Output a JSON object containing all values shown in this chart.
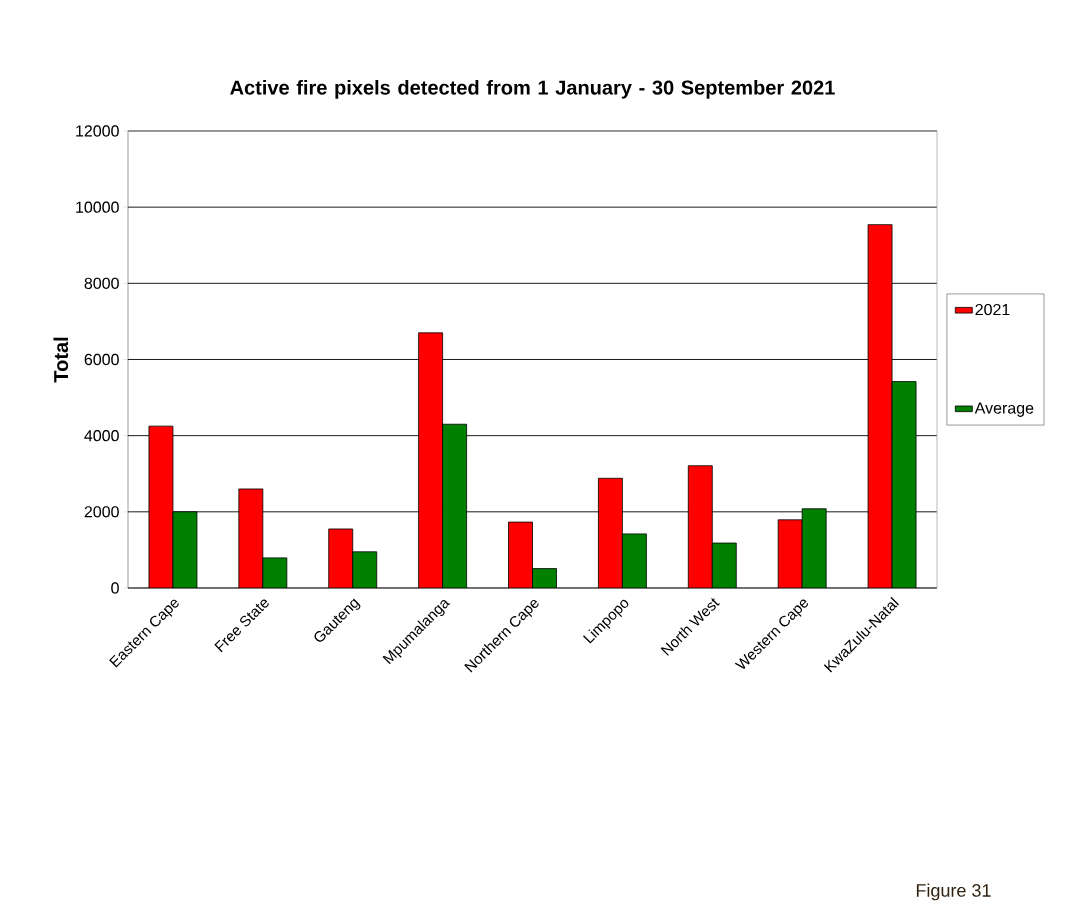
{
  "chart_data": {
    "type": "bar",
    "title": "Active fire pixels detected from 1 January - 30 September 2021",
    "ylabel": "Total",
    "categories": [
      "Eastern Cape",
      "Free State",
      "Gauteng",
      "Mpumalanga",
      "Northern Cape",
      "Limpopo",
      "North West",
      "Western Cape",
      "KwaZulu-Natal"
    ],
    "series": [
      {
        "name": "2021",
        "color": "#ff0000",
        "values": [
          4250,
          2600,
          1550,
          6700,
          1730,
          2880,
          3210,
          1790,
          9540
        ]
      },
      {
        "name": "Average",
        "color": "#008000",
        "values": [
          2000,
          790,
          950,
          4300,
          510,
          1420,
          1180,
          2080,
          5420
        ]
      }
    ],
    "ylim": [
      0,
      12000
    ],
    "yticks": [
      0,
      2000,
      4000,
      6000,
      8000,
      10000,
      12000
    ],
    "grid": "y",
    "legend": "right",
    "annotations": [
      "Figure 31"
    ]
  }
}
